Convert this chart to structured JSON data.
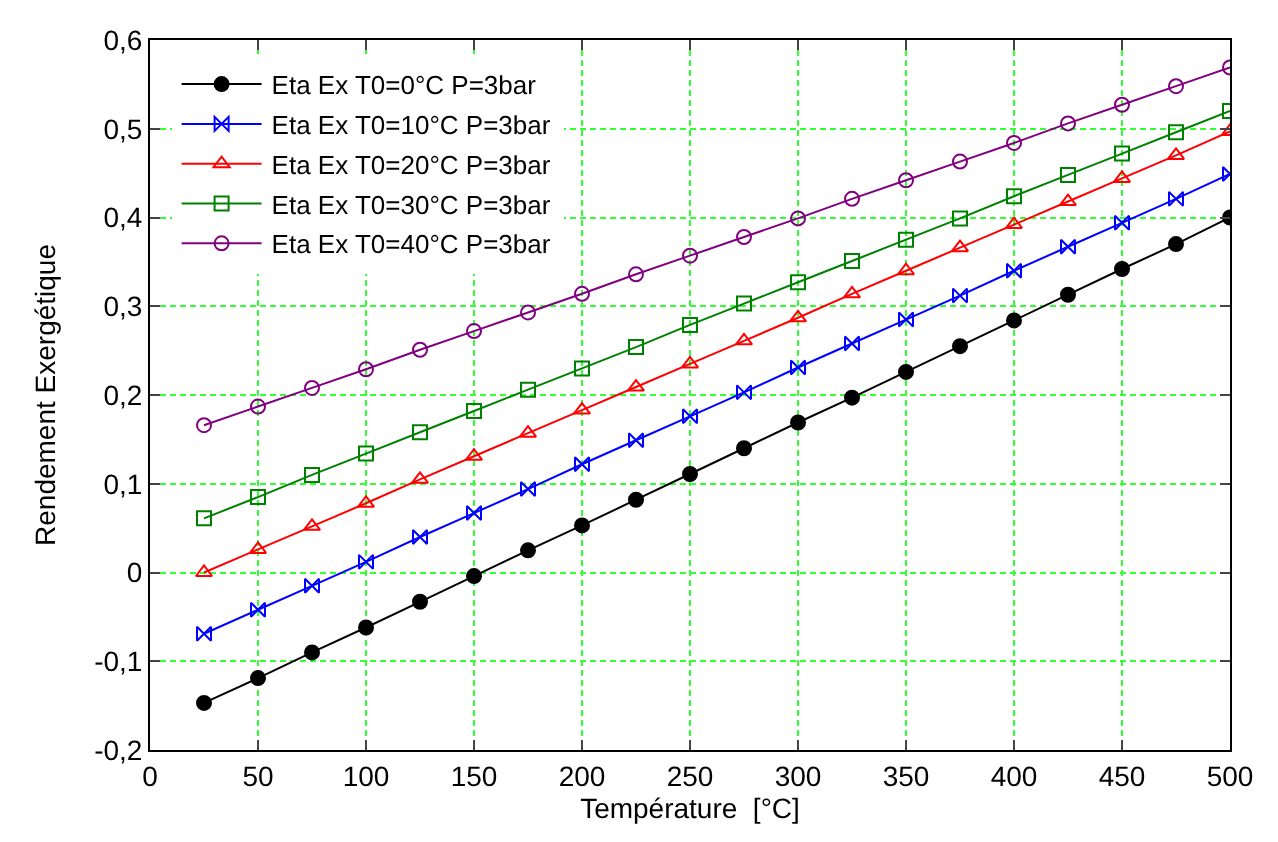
{
  "chart_data": {
    "type": "line",
    "xlabel": "Température  [°C]",
    "ylabel": "Rendement Exergétique",
    "x": [
      25,
      50,
      75,
      100,
      125,
      150,
      175,
      200,
      225,
      250,
      275,
      300,
      325,
      350,
      375,
      400,
      425,
      450,
      475,
      500
    ],
    "series": [
      {
        "name": "Eta Ex T0=0°C P=3bar",
        "color": "#000000",
        "marker": "circle",
        "values": [
          -0.147,
          -0.119,
          -0.09,
          -0.062,
          -0.033,
          -0.004,
          0.025,
          0.053,
          0.082,
          0.111,
          0.14,
          0.169,
          0.197,
          0.226,
          0.255,
          0.284,
          0.313,
          0.342,
          0.37,
          0.4
        ]
      },
      {
        "name": "Eta Ex T0=10°C P=3bar",
        "color": "#0000ff",
        "marker": "diamond",
        "values": [
          -0.069,
          -0.042,
          -0.015,
          0.012,
          0.04,
          0.067,
          0.094,
          0.122,
          0.149,
          0.176,
          0.203,
          0.231,
          0.258,
          0.285,
          0.312,
          0.34,
          0.367,
          0.394,
          0.421,
          0.449
        ]
      },
      {
        "name": "Eta Ex T0=20°C P=3bar",
        "color": "#ff0000",
        "marker": "triangle",
        "values": [
          0.0,
          0.026,
          0.052,
          0.078,
          0.105,
          0.131,
          0.157,
          0.183,
          0.209,
          0.235,
          0.261,
          0.287,
          0.314,
          0.34,
          0.366,
          0.392,
          0.418,
          0.444,
          0.47,
          0.497
        ]
      },
      {
        "name": "Eta Ex T0=30°C P=3bar",
        "color": "#008000",
        "marker": "square",
        "values": [
          0.061,
          0.085,
          0.11,
          0.134,
          0.158,
          0.182,
          0.206,
          0.23,
          0.254,
          0.279,
          0.303,
          0.327,
          0.351,
          0.375,
          0.399,
          0.424,
          0.448,
          0.472,
          0.496,
          0.52
        ]
      },
      {
        "name": "Eta Ex T0=40°C P=3bar",
        "color": "#800080",
        "marker": "circle",
        "values": [
          0.166,
          0.187,
          0.208,
          0.229,
          0.251,
          0.272,
          0.293,
          0.314,
          0.336,
          0.357,
          0.378,
          0.399,
          0.421,
          0.442,
          0.463,
          0.484,
          0.506,
          0.527,
          0.548,
          0.569
        ]
      }
    ],
    "xlim": [
      0,
      500
    ],
    "xticks": [
      0,
      50,
      100,
      150,
      200,
      250,
      300,
      350,
      400,
      450,
      500
    ],
    "ylim": [
      -0.2,
      0.6
    ],
    "yticks": [
      {
        "value": -0.2,
        "label": "-0,2"
      },
      {
        "value": -0.1,
        "label": "-0,1"
      },
      0,
      {
        "value": 0.1,
        "label": "0,1"
      },
      {
        "value": 0.2,
        "label": "0,2"
      },
      {
        "value": 0.3,
        "label": "0,3"
      },
      {
        "value": 0.4,
        "label": "0,4"
      },
      {
        "value": 0.5,
        "label": "0,5"
      },
      {
        "value": 0.6,
        "label": "0,6"
      }
    ],
    "grid": true,
    "legend": "top left",
    "line_style": "solid"
  }
}
